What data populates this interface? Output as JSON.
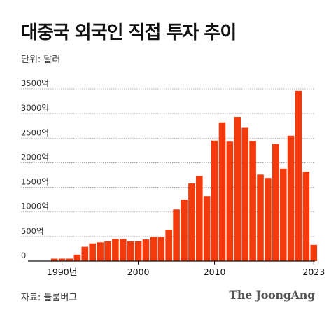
{
  "header": {
    "title": "대중국 외국인 직접 투자 추이",
    "unit": "단위: 달러"
  },
  "footer": {
    "source": "자료: 블룸버그",
    "brand": "The JoongAng"
  },
  "colors": {
    "bar": "#f23a0c",
    "grid": "#9a9a9a",
    "axis": "#111111"
  },
  "chart_data": {
    "type": "bar",
    "x": [
      1988,
      1989,
      1990,
      1991,
      1992,
      1993,
      1994,
      1995,
      1996,
      1997,
      1998,
      1999,
      2000,
      2001,
      2002,
      2003,
      2004,
      2005,
      2006,
      2007,
      2008,
      2009,
      2010,
      2011,
      2012,
      2013,
      2014,
      2015,
      2016,
      2017,
      2018,
      2019,
      2020,
      2021,
      2022,
      2023
    ],
    "values": [
      0,
      50,
      50,
      50,
      130,
      290,
      360,
      380,
      400,
      450,
      450,
      400,
      400,
      440,
      490,
      490,
      640,
      1050,
      1250,
      1580,
      1730,
      1320,
      2450,
      2820,
      2430,
      2930,
      2710,
      2440,
      1760,
      1690,
      2380,
      1880,
      2550,
      3460,
      1820,
      330
    ],
    "ylim": [
      0,
      3500
    ],
    "yticks": [
      0,
      500,
      1000,
      1500,
      2000,
      2500,
      3000,
      3500
    ],
    "ytick_labels": [
      "0",
      "500억",
      "1000억",
      "1500억",
      "2000억",
      "2500억",
      "3000억",
      "3500억"
    ],
    "xticks": [
      1990,
      2000,
      2010,
      2023
    ],
    "xtick_labels": [
      "1990년",
      "2000",
      "2010",
      "2023"
    ],
    "grid": true,
    "legend": "none"
  }
}
